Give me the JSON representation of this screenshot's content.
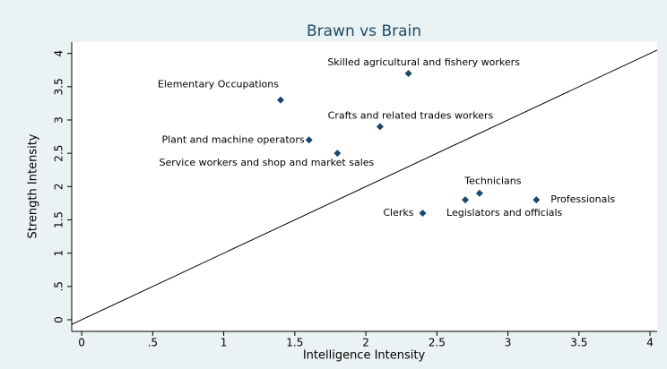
{
  "chart_data": {
    "type": "scatter",
    "title": "Brawn vs Brain",
    "x_label": "Intelligence Intensity",
    "y_label": "Strength Intensity",
    "color": "#1a476f",
    "diagonal": true,
    "xlim": [
      -0.07,
      4.05
    ],
    "ylim": [
      -0.175,
      4.17
    ],
    "xticks": [
      0,
      {
        "value": 0.5,
        "label": ".5"
      },
      1,
      1.5,
      2,
      2.5,
      3,
      3.5,
      4
    ],
    "yticks": [
      0,
      {
        "value": 0.5,
        "label": ".5"
      },
      1,
      1.5,
      2,
      2.5,
      3,
      3.5,
      4
    ],
    "labels": [
      "Skilled agricultural and fishery workers",
      "Elementary Occupations",
      "Crafts and related trades workers",
      "Plant and machine operators",
      "Service workers and shop and market sales",
      "Technicians",
      "Professionals",
      "Legislators and officials",
      "Clerks"
    ],
    "x": [
      2.3,
      1.4,
      2.1,
      1.6,
      1.8,
      2.8,
      3.2,
      2.7,
      2.4
    ],
    "values": [
      3.7,
      3.3,
      2.9,
      2.7,
      2.5,
      1.9,
      1.8,
      1.8,
      1.6
    ]
  }
}
